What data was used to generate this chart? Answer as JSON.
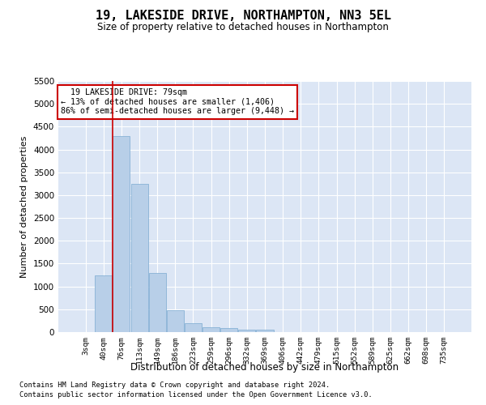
{
  "title": "19, LAKESIDE DRIVE, NORTHAMPTON, NN3 5EL",
  "subtitle": "Size of property relative to detached houses in Northampton",
  "xlabel": "Distribution of detached houses by size in Northampton",
  "ylabel": "Number of detached properties",
  "property_label": "19 LAKESIDE DRIVE: 79sqm",
  "pct_smaller": "13% of detached houses are smaller (1,406)",
  "pct_larger": "86% of semi-detached houses are larger (9,448)",
  "bar_categories": [
    "3sqm",
    "40sqm",
    "76sqm",
    "113sqm",
    "149sqm",
    "186sqm",
    "223sqm",
    "259sqm",
    "296sqm",
    "332sqm",
    "369sqm",
    "406sqm",
    "442sqm",
    "479sqm",
    "515sqm",
    "552sqm",
    "589sqm",
    "625sqm",
    "662sqm",
    "698sqm",
    "735sqm"
  ],
  "bar_values": [
    0,
    1250,
    4300,
    3250,
    1300,
    480,
    200,
    100,
    80,
    50,
    50,
    0,
    0,
    0,
    0,
    0,
    0,
    0,
    0,
    0,
    0
  ],
  "bar_color": "#b8cfe8",
  "bar_edge_color": "#7aaad0",
  "vline_x_index": 2,
  "vline_color": "#cc0000",
  "ylim": [
    0,
    5500
  ],
  "yticks": [
    0,
    500,
    1000,
    1500,
    2000,
    2500,
    3000,
    3500,
    4000,
    4500,
    5000,
    5500
  ],
  "bg_color": "#dce6f5",
  "grid_color": "#ffffff",
  "fig_bg_color": "#ffffff",
  "footnote1": "Contains HM Land Registry data © Crown copyright and database right 2024.",
  "footnote2": "Contains public sector information licensed under the Open Government Licence v3.0."
}
